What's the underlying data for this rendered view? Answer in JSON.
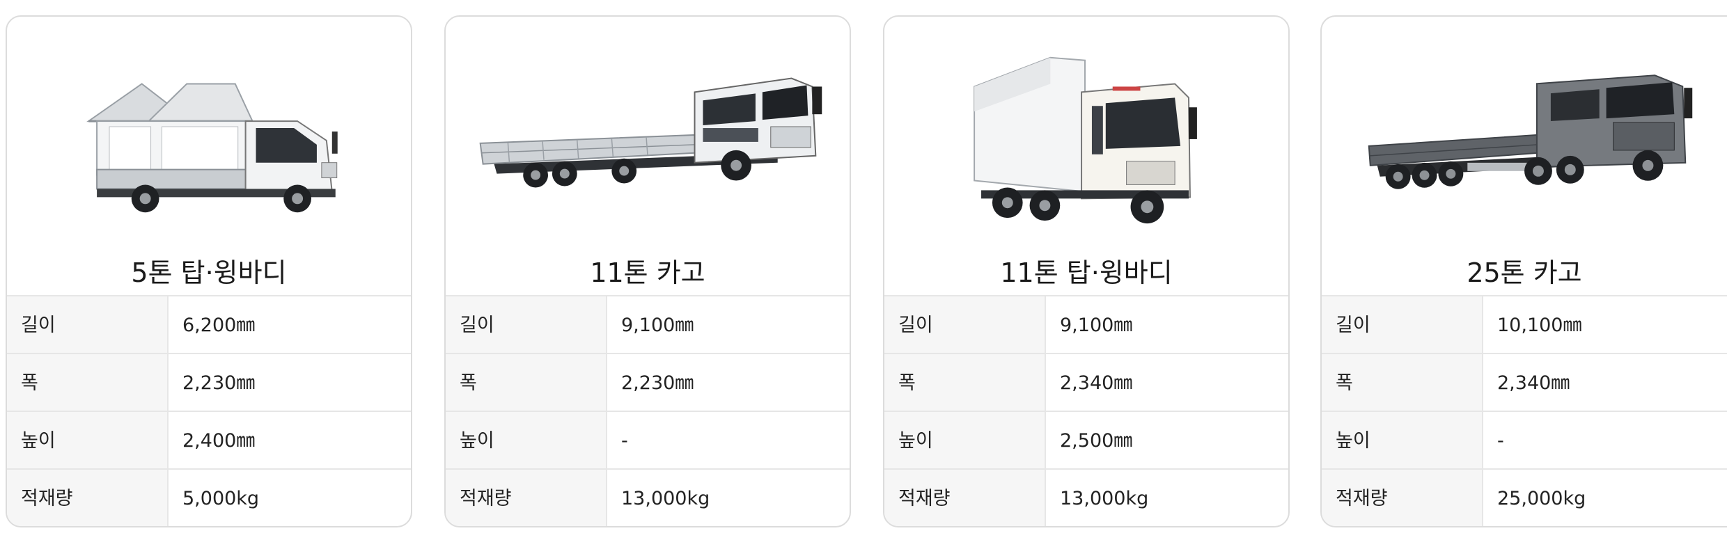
{
  "trucks": [
    {
      "title": "5톤 탑·윙바디",
      "image_icon": "wing-body-truck-image",
      "specs": [
        {
          "label": "길이",
          "value": "6,200㎜"
        },
        {
          "label": "폭",
          "value": "2,230㎜"
        },
        {
          "label": "높이",
          "value": "2,400㎜"
        },
        {
          "label": "적재량",
          "value": "5,000kg"
        }
      ]
    },
    {
      "title": "11톤 카고",
      "image_icon": "cargo-truck-image",
      "specs": [
        {
          "label": "길이",
          "value": "9,100㎜"
        },
        {
          "label": "폭",
          "value": "2,230㎜"
        },
        {
          "label": "높이",
          "value": "-"
        },
        {
          "label": "적재량",
          "value": "13,000kg"
        }
      ]
    },
    {
      "title": "11톤 탑·윙바디",
      "image_icon": "box-truck-image",
      "specs": [
        {
          "label": "길이",
          "value": "9,100㎜"
        },
        {
          "label": "폭",
          "value": "2,340㎜"
        },
        {
          "label": "높이",
          "value": "2,500㎜"
        },
        {
          "label": "적재량",
          "value": "13,000kg"
        }
      ]
    },
    {
      "title": "25톤 카고",
      "image_icon": "heavy-cargo-truck-image",
      "specs": [
        {
          "label": "길이",
          "value": "10,100㎜"
        },
        {
          "label": "폭",
          "value": "2,340㎜"
        },
        {
          "label": "높이",
          "value": "-"
        },
        {
          "label": "적재량",
          "value": "25,000kg"
        }
      ]
    }
  ]
}
